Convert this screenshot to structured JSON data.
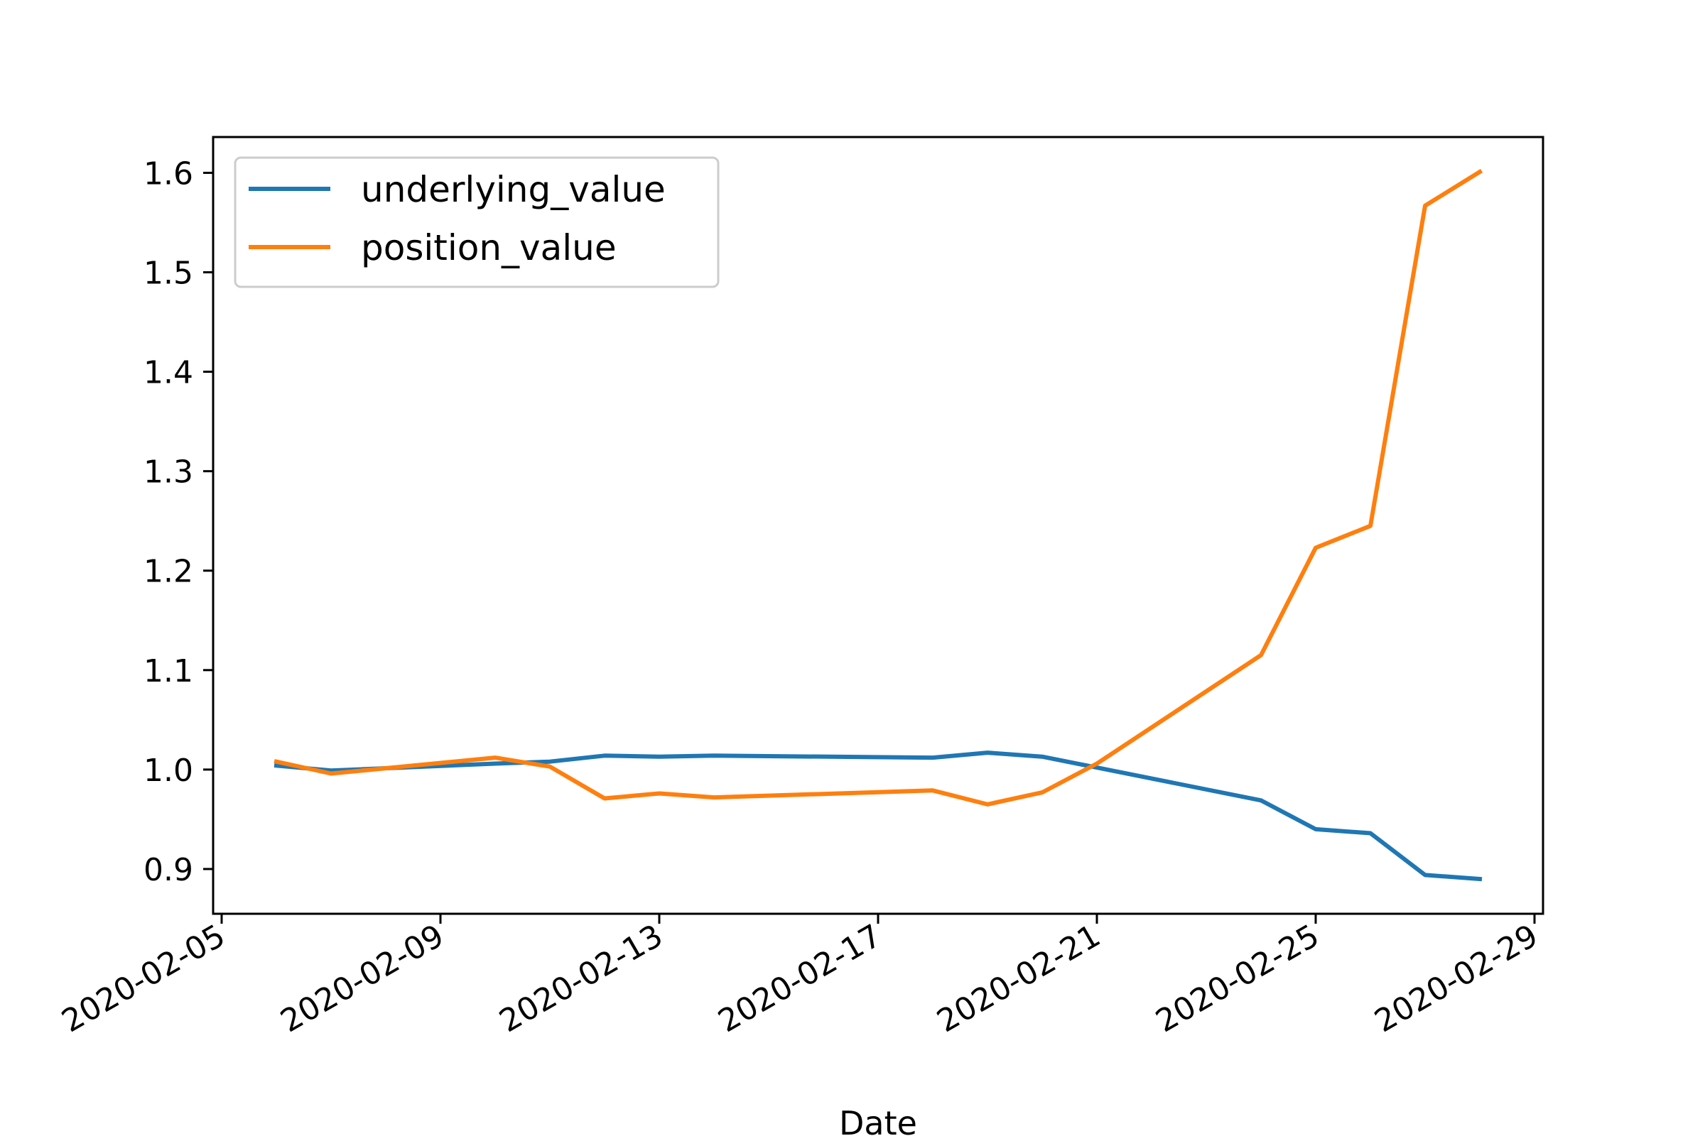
{
  "chart_data": {
    "type": "line",
    "title": "",
    "xlabel": "Date",
    "ylabel": "",
    "x_axis_type": "date",
    "xlim": [
      "2020-02-05",
      "2020-02-29"
    ],
    "ylim": [
      0.855,
      1.636
    ],
    "x_ticks": [
      "2020-02-05",
      "2020-02-09",
      "2020-02-13",
      "2020-02-17",
      "2020-02-21",
      "2020-02-25",
      "2020-02-29"
    ],
    "y_ticks": [
      "0.9",
      "1.0",
      "1.1",
      "1.2",
      "1.3",
      "1.4",
      "1.5",
      "1.6"
    ],
    "grid": false,
    "legend_position": "top-left",
    "x": [
      "2020-02-06",
      "2020-02-07",
      "2020-02-10",
      "2020-02-11",
      "2020-02-12",
      "2020-02-13",
      "2020-02-14",
      "2020-02-18",
      "2020-02-19",
      "2020-02-20",
      "2020-02-21",
      "2020-02-24",
      "2020-02-25",
      "2020-02-26",
      "2020-02-27",
      "2020-02-28"
    ],
    "series": [
      {
        "name": "underlying_value",
        "color": "#1f77b4",
        "values": [
          1.004,
          0.999,
          1.006,
          1.008,
          1.014,
          1.013,
          1.014,
          1.012,
          1.017,
          1.013,
          1.002,
          0.969,
          0.94,
          0.936,
          0.894,
          0.89
        ]
      },
      {
        "name": "position_value",
        "color": "#ff7f0e",
        "values": [
          1.008,
          0.996,
          1.012,
          1.003,
          0.971,
          0.976,
          0.972,
          0.979,
          0.965,
          0.977,
          1.006,
          1.115,
          1.223,
          1.245,
          1.567,
          1.601
        ]
      }
    ]
  }
}
